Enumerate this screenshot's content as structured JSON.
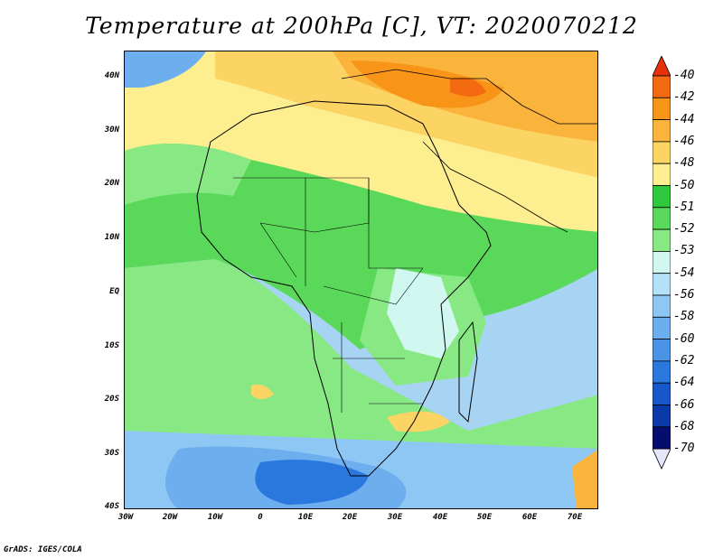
{
  "title": "Temperature at 200hPa [C], VT: 2020070212",
  "credit": "GrADS: IGES/COLA",
  "map": {
    "lat_labels": [
      "40N",
      "30N",
      "20N",
      "10N",
      "EQ",
      "10S",
      "20S",
      "30S",
      "40S"
    ],
    "lon_labels": [
      "30W",
      "20W",
      "10W",
      "0",
      "10E",
      "20E",
      "30E",
      "40E",
      "50E",
      "60E",
      "70E"
    ]
  },
  "colorbar": {
    "levels": [
      "-40",
      "-42",
      "-44",
      "-46",
      "-48",
      "-50",
      "-51",
      "-52",
      "-53",
      "-54",
      "-56",
      "-58",
      "-60",
      "-62",
      "-64",
      "-66",
      "-68",
      "-70"
    ],
    "colors": {
      "top_arrow": "#e8300a",
      "bottom_arrow": "#e6e6fa",
      "boxes": [
        "#f04a10",
        "#f46a10",
        "#f89418",
        "#fab43c",
        "#fcd464",
        "#fdee90",
        "#2ec83c",
        "#5ad85a",
        "#88e884",
        "#d0f8f0",
        "#b4e0fa",
        "#8ec6f4",
        "#6caeee",
        "#4a94e8",
        "#2a78de",
        "#1658cc",
        "#0a3aa8",
        "#050e6e"
      ]
    }
  }
}
